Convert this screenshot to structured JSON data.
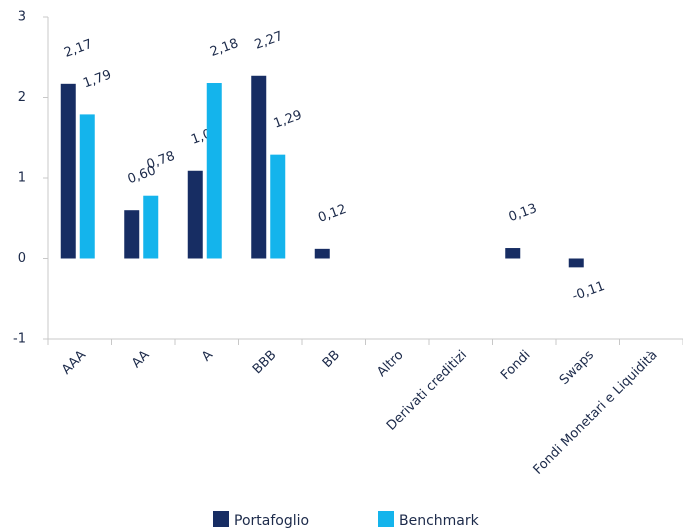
{
  "chart_data": {
    "type": "bar",
    "categories": [
      "AAA",
      "AA",
      "A",
      "BBB",
      "BB",
      "Altro",
      "Derivati creditizi",
      "Fondi",
      "Swaps",
      "Fondi Monetari e Liquidità"
    ],
    "series": [
      {
        "name": "Portafoglio",
        "color": "#172d63",
        "values": [
          2.17,
          0.6,
          1.09,
          2.27,
          0.12,
          null,
          null,
          0.13,
          -0.11,
          null
        ],
        "value_labels": [
          "2,17",
          "0,60",
          "1,09",
          "2,27",
          "0,12",
          null,
          null,
          "0,13",
          "-0,11",
          null
        ]
      },
      {
        "name": "Benchmark",
        "color": "#14b4ec",
        "values": [
          1.79,
          0.78,
          2.18,
          1.29,
          null,
          null,
          null,
          null,
          null,
          null
        ],
        "value_labels": [
          "1,79",
          "0,78",
          "2,18",
          "1,29",
          null,
          null,
          null,
          null,
          null,
          null
        ]
      }
    ],
    "ylim": [
      -1,
      3
    ],
    "yticks": [
      -1,
      0,
      1,
      2,
      3
    ],
    "grid": false,
    "legend": "bottom"
  }
}
